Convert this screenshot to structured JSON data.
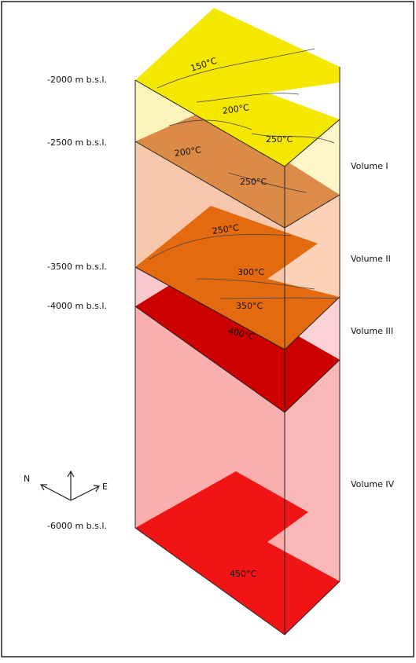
{
  "depth_labels": [
    "-2000 m b.s.l.",
    "-2500 m b.s.l.",
    "-3500 m b.s.l.",
    "-4000 m b.s.l.",
    "-6000 m b.s.l."
  ],
  "volume_labels": [
    "Volume I",
    "Volume II",
    "Volume III",
    "Volume IV"
  ],
  "isotherm_labels": [
    "150°C",
    "200°C",
    "250°C",
    "200°C",
    "250°C",
    "250°C",
    "300°C",
    "350°C",
    "400°C",
    "450°C"
  ],
  "compass": {
    "north": "N",
    "east": "E"
  }
}
